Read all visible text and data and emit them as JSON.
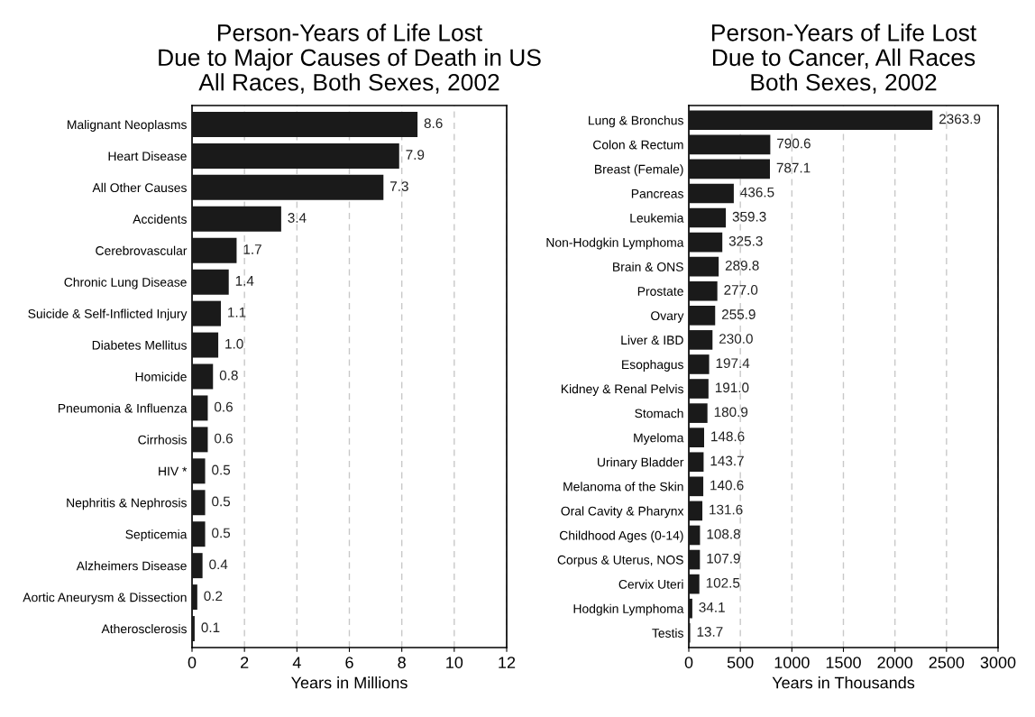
{
  "chart_data": [
    {
      "type": "bar",
      "orientation": "horizontal",
      "title": "Person-Years of Life Lost\nDue to Major Causes of Death in US\nAll Races, Both Sexes, 2002",
      "xlabel": "Years in Millions",
      "categories": [
        "Malignant Neoplasms",
        "Heart Disease",
        "All Other Causes",
        "Accidents",
        "Cerebrovascular",
        "Chronic Lung Disease",
        "Suicide & Self-Inflicted Injury",
        "Diabetes Mellitus",
        "Homicide",
        "Pneumonia & Influenza",
        "Cirrhosis",
        "HIV *",
        "Nephritis & Nephrosis",
        "Septicemia",
        "Alzheimers Disease",
        "Aortic Aneurysm & Dissection",
        "Atherosclerosis"
      ],
      "values": [
        8.6,
        7.9,
        7.3,
        3.4,
        1.7,
        1.4,
        1.1,
        1.0,
        0.8,
        0.6,
        0.6,
        0.5,
        0.5,
        0.5,
        0.4,
        0.2,
        0.1
      ],
      "value_labels": [
        "8.6",
        "7.9",
        "7.3",
        "3.4",
        "1.7",
        "1.4",
        "1.1",
        "1.0",
        "0.8",
        "0.6",
        "0.6",
        "0.5",
        "0.5",
        "0.5",
        "0.4",
        "0.2",
        "0.1"
      ],
      "color": "#1a1a1a",
      "xlim": [
        0,
        12
      ],
      "xticks": [
        0,
        2,
        4,
        6,
        8,
        10,
        12
      ],
      "grid": "x"
    },
    {
      "type": "bar",
      "orientation": "horizontal",
      "title": "Person-Years of Life Lost\nDue to Cancer, All Races\nBoth Sexes, 2002",
      "xlabel": "Years in Thousands",
      "categories": [
        "Lung & Bronchus",
        "Colon & Rectum",
        "Breast (Female)",
        "Pancreas",
        "Leukemia",
        "Non-Hodgkin Lymphoma",
        "Brain & ONS",
        "Prostate",
        "Ovary",
        "Liver & IBD",
        "Esophagus",
        "Kidney & Renal Pelvis",
        "Stomach",
        "Myeloma",
        "Urinary Bladder",
        "Melanoma of the Skin",
        "Oral Cavity & Pharynx",
        "Childhood Ages (0-14)",
        "Corpus & Uterus, NOS",
        "Cervix Uteri",
        "Hodgkin Lymphoma",
        "Testis"
      ],
      "values": [
        2363.9,
        790.6,
        787.1,
        436.5,
        359.3,
        325.3,
        289.8,
        277.0,
        255.9,
        230.0,
        197.4,
        191.0,
        180.9,
        148.6,
        143.7,
        140.6,
        131.6,
        108.8,
        107.9,
        102.5,
        34.1,
        13.7
      ],
      "value_labels": [
        "2363.9",
        "790.6",
        "787.1",
        "436.5",
        "359.3",
        "325.3",
        "289.8",
        "277.0",
        "255.9",
        "230.0",
        "197.4",
        "191.0",
        "180.9",
        "148.6",
        "143.7",
        "140.6",
        "131.6",
        "108.8",
        "107.9",
        "102.5",
        "34.1",
        "13.7"
      ],
      "color": "#1a1a1a",
      "xlim": [
        0,
        3000
      ],
      "xticks": [
        0,
        500,
        1000,
        1500,
        2000,
        2500,
        3000
      ],
      "grid": "x"
    }
  ]
}
